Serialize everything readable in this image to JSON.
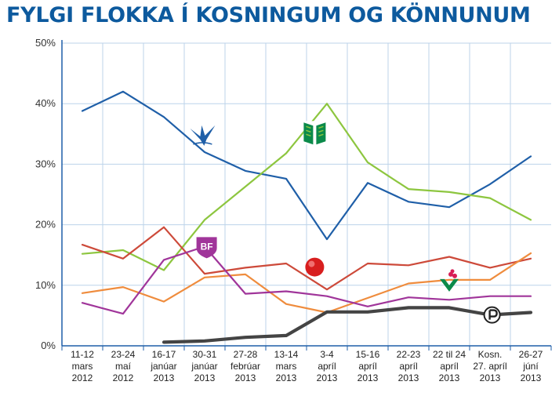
{
  "colors": {
    "title": "#0d5a9e",
    "axis": "#1f5fa8",
    "grid": "#bcd3ea",
    "tick_text": "#333333"
  },
  "chart_data": {
    "type": "line",
    "title": "FYLGI FLOKKA Í KOSNINGUM OG KÖNNUNUM",
    "xlabel": "",
    "ylabel": "",
    "ylim": [
      0,
      50
    ],
    "yticks": [
      "0%",
      "10%",
      "20%",
      "30%",
      "40%",
      "50%"
    ],
    "grid": true,
    "categories": [
      [
        "11-12",
        "mars",
        "2012"
      ],
      [
        "23-24",
        "maí",
        "2012"
      ],
      [
        "16-17",
        "janúar",
        "2013"
      ],
      [
        "30-31",
        "janúar",
        "2013"
      ],
      [
        "27-28",
        "febrúar",
        "2013"
      ],
      [
        "13-14",
        "mars",
        "2013"
      ],
      [
        "3-4",
        "apríl",
        "2013"
      ],
      [
        "15-16",
        "apríl",
        "2013"
      ],
      [
        "22-23",
        "apríl",
        "2013"
      ],
      [
        "22 til 24",
        "apríl",
        "2013"
      ],
      [
        "Kosn.",
        "27. apríl",
        "2013"
      ],
      [
        "26-27",
        "júní",
        "2013"
      ]
    ],
    "series": [
      {
        "color": "#1f5fa8",
        "icon": "falcon-icon",
        "width": 2.2,
        "values": [
          38.8,
          42.0,
          37.8,
          32.0,
          28.9,
          27.6,
          17.6,
          26.9,
          23.8,
          22.9,
          26.7,
          31.3
        ]
      },
      {
        "color": "#8dc63f",
        "icon": "book-icon",
        "width": 2.2,
        "values": [
          15.2,
          15.8,
          12.5,
          20.8,
          26.3,
          31.8,
          40.0,
          30.3,
          25.9,
          25.4,
          24.4,
          20.8
        ]
      },
      {
        "color": "#cd4a3a",
        "icon": "red-rose-icon",
        "width": 2.2,
        "values": [
          16.7,
          14.4,
          19.6,
          11.9,
          12.9,
          13.6,
          9.3,
          13.6,
          13.3,
          14.7,
          12.9,
          14.4
        ]
      },
      {
        "color": "#ef8c3d",
        "icon": "clover-icon",
        "width": 2.2,
        "values": [
          8.7,
          9.7,
          7.3,
          11.3,
          11.8,
          6.9,
          5.5,
          7.9,
          10.3,
          10.9,
          10.9,
          15.3
        ]
      },
      {
        "color": "#a0359a",
        "icon": "bf-shield-icon",
        "width": 2.2,
        "values": [
          7.1,
          5.3,
          14.2,
          16.4,
          8.6,
          9.0,
          8.2,
          6.5,
          8.0,
          7.6,
          8.2,
          8.2
        ]
      },
      {
        "color": "#444444",
        "icon": "pirate-icon",
        "width": 4.2,
        "values": [
          null,
          null,
          0.6,
          0.8,
          1.4,
          1.7,
          5.6,
          5.6,
          6.3,
          6.3,
          5.1,
          5.5
        ]
      }
    ],
    "icons": [
      {
        "name": "falcon-icon",
        "x": 3.45,
        "y": 34.6
      },
      {
        "name": "book-icon",
        "x": 6.2,
        "y": 35.2
      },
      {
        "name": "red-rose-icon",
        "x": 6.2,
        "y": 13.0
      },
      {
        "name": "clover-icon",
        "x": 9.5,
        "y": 10.5
      },
      {
        "name": "bf-shield-icon",
        "x": 3.55,
        "y": 16.4
      },
      {
        "name": "pirate-icon",
        "x": 10.55,
        "y": 5.1
      }
    ]
  }
}
